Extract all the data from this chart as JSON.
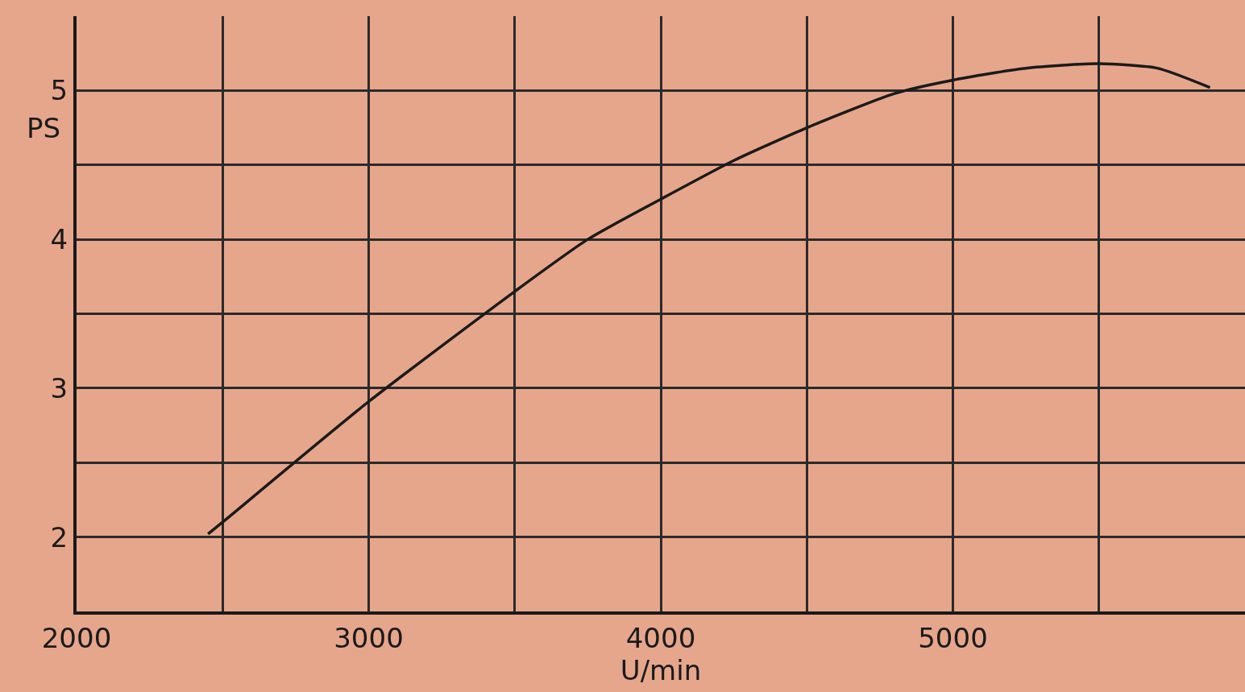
{
  "chart_data": {
    "type": "line",
    "xlabel": "U/min",
    "ylabel": "PS",
    "x": [
      2450,
      2500,
      3000,
      3500,
      3750,
      4000,
      4250,
      4500,
      4800,
      5000,
      5250,
      5500,
      5700,
      5880
    ],
    "series": [
      {
        "color": "#1a1a1a",
        "values": [
          2.02,
          2.1,
          2.91,
          3.65,
          4.0,
          4.27,
          4.53,
          4.75,
          4.98,
          5.07,
          5.15,
          5.18,
          5.15,
          5.02
        ]
      }
    ],
    "xlim": [
      2000,
      6000
    ],
    "xticks": [
      2000,
      {
        "value": 2500,
        "label": null
      },
      3000,
      {
        "value": 3500,
        "label": null
      },
      4000,
      {
        "value": 4500,
        "label": null
      },
      5000,
      {
        "value": 5500,
        "label": null
      }
    ],
    "ylim": [
      1.5,
      5.5
    ],
    "yticks": [
      2,
      {
        "value": 2.5,
        "label": null
      },
      3,
      {
        "value": 3.5,
        "label": null
      },
      4,
      {
        "value": 4.5,
        "label": null
      },
      5
    ],
    "grid": true,
    "marker": "none",
    "line_style": "solid"
  }
}
